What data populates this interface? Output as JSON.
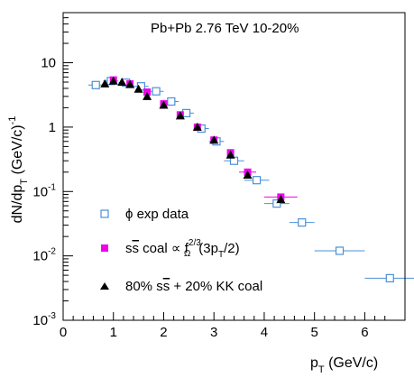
{
  "chart_data": {
    "type": "scatter",
    "annotation": "Pb+Pb 2.76 TeV 10-20%",
    "xlabel": {
      "main": "p",
      "sub": "T",
      "unit": " (GeV/c)"
    },
    "ylabel": {
      "main": "dN/dp",
      "sub": "T",
      "unit": " (GeV/c)",
      "sup": "-1"
    },
    "x_scale": "linear",
    "y_scale": "log",
    "xlim": [
      0,
      6.8
    ],
    "ylim": [
      0.001,
      60
    ],
    "grid": false,
    "x_ticks": [
      "0",
      "1",
      "2",
      "3",
      "4",
      "5",
      "6"
    ],
    "y_ticks": [
      {
        "base": "10",
        "exp": "-3"
      },
      {
        "base": "10",
        "exp": "-2"
      },
      {
        "base": "10",
        "exp": "-1"
      },
      {
        "base": "1",
        "exp": ""
      },
      {
        "base": "10",
        "exp": ""
      }
    ],
    "legend_position": "bottom-left",
    "colors": {
      "exp": "#4a90d9",
      "coal": "#ee00ee",
      "kk": "#000000"
    },
    "series": [
      {
        "name": "ϕ exp data",
        "marker": "open-square",
        "points": [
          {
            "x": 0.65,
            "xerr": 0.15,
            "y": 4.5
          },
          {
            "x": 0.95,
            "xerr": 0.15,
            "y": 5.2
          },
          {
            "x": 1.25,
            "xerr": 0.15,
            "y": 4.9
          },
          {
            "x": 1.55,
            "xerr": 0.15,
            "y": 4.3
          },
          {
            "x": 1.85,
            "xerr": 0.15,
            "y": 3.6
          },
          {
            "x": 2.15,
            "xerr": 0.15,
            "y": 2.5
          },
          {
            "x": 2.45,
            "xerr": 0.15,
            "y": 1.65
          },
          {
            "x": 2.75,
            "xerr": 0.15,
            "y": 0.95
          },
          {
            "x": 3.05,
            "xerr": 0.15,
            "y": 0.6
          },
          {
            "x": 3.4,
            "xerr": 0.2,
            "y": 0.3
          },
          {
            "x": 3.85,
            "xerr": 0.25,
            "y": 0.15
          },
          {
            "x": 4.25,
            "xerr": 0.25,
            "y": 0.065
          },
          {
            "x": 4.75,
            "xerr": 0.25,
            "y": 0.033
          },
          {
            "x": 5.5,
            "xerr": 0.5,
            "y": 0.012
          },
          {
            "x": 6.5,
            "xerr": 0.5,
            "y": 0.0045
          }
        ]
      },
      {
        "name": "ss̅ coal ∝ fΩ²ᐟ³(3pT/2)",
        "legend_parts": {
          "a": "s",
          "bar": "s",
          "b": " coal ∝ f",
          "sub": "Ω",
          "sup": "2/3",
          "c": "(3p",
          "d": "T",
          "e": "/2)"
        },
        "marker": "filled-square",
        "points": [
          {
            "x": 1.0,
            "y": 5.4
          },
          {
            "x": 1.33,
            "y": 4.7
          },
          {
            "x": 1.67,
            "y": 3.5
          },
          {
            "x": 2.0,
            "y": 2.3
          },
          {
            "x": 2.33,
            "y": 1.55
          },
          {
            "x": 2.67,
            "y": 1.0
          },
          {
            "x": 3.0,
            "y": 0.63
          },
          {
            "x": 3.33,
            "y": 0.4
          },
          {
            "x": 3.67,
            "xerr": 0.17,
            "y": 0.2
          },
          {
            "x": 4.33,
            "xerr": 0.33,
            "y": 0.082
          }
        ]
      },
      {
        "name": "80% ss̅ + 20% KK coal",
        "legend_parts": {
          "a": "80% s",
          "bar": "s",
          "b": " + 20% KK coal"
        },
        "marker": "filled-triangle",
        "points": [
          {
            "x": 0.83,
            "y": 4.7
          },
          {
            "x": 1.0,
            "y": 5.2
          },
          {
            "x": 1.17,
            "y": 5.0
          },
          {
            "x": 1.33,
            "y": 4.6
          },
          {
            "x": 1.5,
            "y": 3.9
          },
          {
            "x": 1.67,
            "y": 3.0
          },
          {
            "x": 2.0,
            "y": 2.2
          },
          {
            "x": 2.33,
            "y": 1.5
          },
          {
            "x": 2.67,
            "y": 1.0
          },
          {
            "x": 3.0,
            "y": 0.63
          },
          {
            "x": 3.33,
            "y": 0.37
          },
          {
            "x": 3.67,
            "y": 0.18
          },
          {
            "x": 4.33,
            "y": 0.075
          }
        ]
      }
    ]
  }
}
